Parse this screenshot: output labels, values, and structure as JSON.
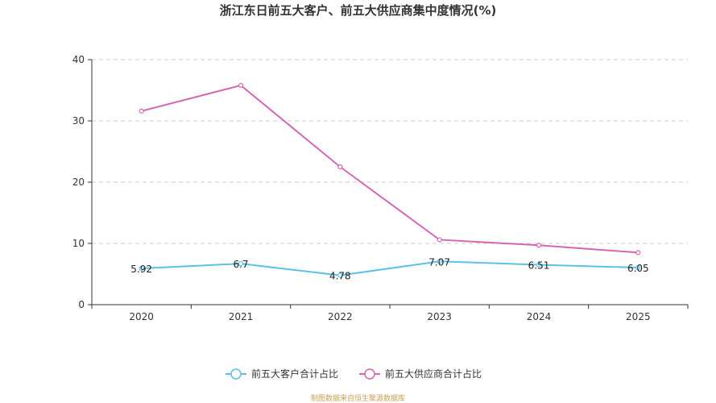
{
  "chart_data": {
    "type": "line",
    "title": "浙江东日前五大客户、前五大供应商集中度情况(%)",
    "categories": [
      "2020",
      "2021",
      "2022",
      "2023",
      "2024",
      "2025"
    ],
    "ylim": [
      0,
      40
    ],
    "yticks": [
      0,
      10,
      20,
      30,
      40
    ],
    "grid": true,
    "legend_position": "bottom-center",
    "series": [
      {
        "name": "前五大客户合计占比",
        "color": "#5bc0eb",
        "values": [
          5.92,
          6.7,
          4.78,
          7.07,
          6.51,
          6.05
        ],
        "labels": [
          "5.92",
          "6.7",
          "4.78",
          "7.07",
          "6.51",
          "6.05"
        ],
        "show_labels": true
      },
      {
        "name": "前五大供应商合计占比",
        "color": "#d664b4",
        "values": [
          31.6,
          35.8,
          22.5,
          10.6,
          9.7,
          8.5
        ],
        "show_labels": false
      }
    ]
  },
  "source": "制图数据来自恒生聚源数据库"
}
